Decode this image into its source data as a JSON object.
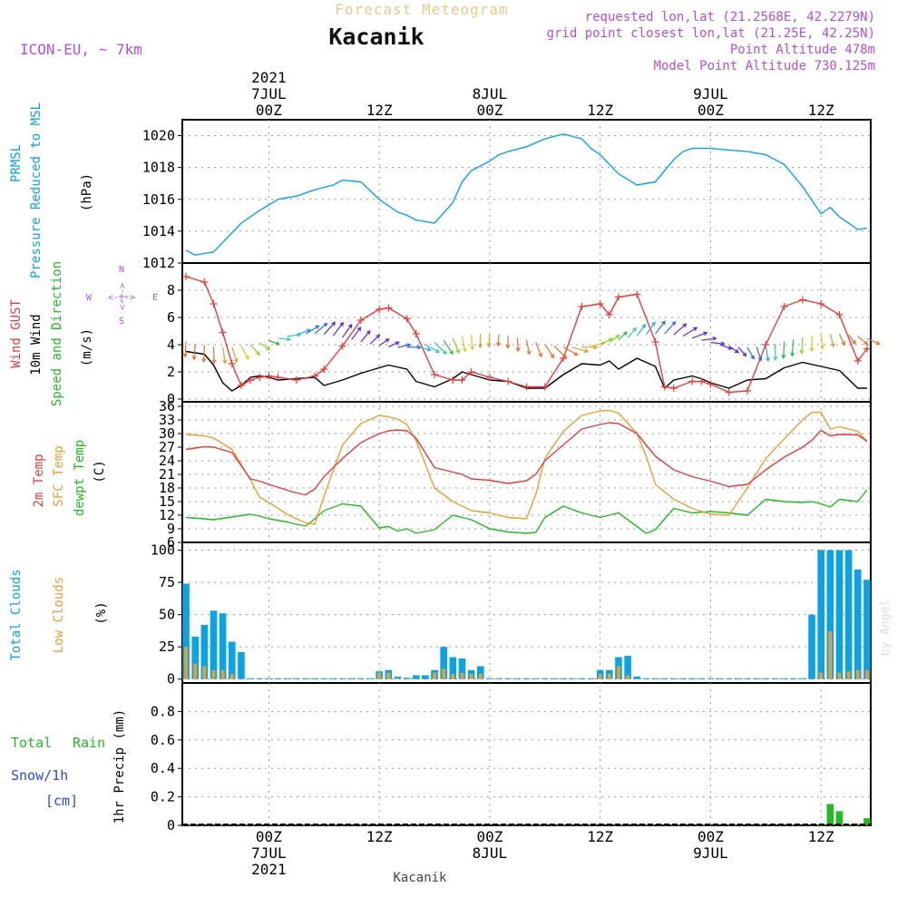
{
  "header": {
    "product": "Forecast Meteogram",
    "location": "Kacanik",
    "model": "ICON-EU, ~ 7km",
    "requested": "requested lon,lat (21.2568E, 42.2279N)",
    "gridpoint": "grid point closest lon,lat (21.25E, 42.25N)",
    "point_alt": "Point Altitude 478m",
    "model_alt": "Model Point Altitude 730.125m"
  },
  "footer": {
    "location": "Kacanik",
    "credit": "by Angel"
  },
  "time_axis": {
    "ticks": [
      {
        "hour": 0,
        "top": [
          "2021",
          "7JUL",
          "00Z"
        ],
        "bottom": [
          "00Z",
          "7JUL",
          "2021"
        ]
      },
      {
        "hour": 12,
        "top": [
          "12Z"
        ],
        "bottom": [
          "12Z"
        ]
      },
      {
        "hour": 24,
        "top": [
          "8JUL",
          "00Z"
        ],
        "bottom": [
          "00Z",
          "8JUL"
        ]
      },
      {
        "hour": 36,
        "top": [
          "12Z"
        ],
        "bottom": [
          "12Z"
        ]
      },
      {
        "hour": 48,
        "top": [
          "9JUL",
          "00Z"
        ],
        "bottom": [
          "00Z",
          "9JUL"
        ]
      },
      {
        "hour": 60,
        "top": [
          "12Z"
        ],
        "bottom": [
          "12Z"
        ]
      }
    ]
  },
  "panel_labels": {
    "pressure": [
      [
        "PRMSL",
        "#0aa4e6"
      ],
      [
        "Pressure Reduced to MSL",
        "#0aa4e6"
      ],
      [
        "(hPa)",
        "#000000"
      ]
    ],
    "wind": [
      [
        "Wind GUST",
        "#e83c3c"
      ],
      [
        "10m Wind",
        "#000000"
      ],
      [
        "Speed and Direction",
        "#22bb22"
      ],
      [
        "(m/s)",
        "#000000"
      ]
    ],
    "temp": [
      [
        "2m Temp",
        "#e83c3c"
      ],
      [
        "SFC Temp",
        "#e8a030"
      ],
      [
        "dewpt Temp",
        "#22bb22"
      ],
      [
        "(C)",
        "#000000"
      ]
    ],
    "clouds": [
      [
        "Total Clouds",
        "#0aa4e6"
      ],
      [
        "Low Clouds",
        "#e8a030"
      ],
      [
        "(%)",
        "#000000"
      ]
    ],
    "precip_side": [
      "Total",
      "Rain",
      "Snow/1h",
      "[cm]"
    ],
    "precip_axis": "1hr Precip (mm)",
    "compass": {
      "n": "N",
      "s": "S",
      "e": "E",
      "w": "W",
      "arrow_h": "<-|->",
      "arrow_v": "<-|->"
    }
  },
  "colors": {
    "pressure": "#0aa4e6",
    "gust": "#e83c3c",
    "wind": "#000000",
    "temp2m": "#e83c3c",
    "sfc": "#e8a030",
    "dewpt": "#22bb22",
    "total_clouds": "#0aa4e6",
    "low_clouds": "#e8a030",
    "rain": "#22bb22",
    "title_grey": "#e8c98a",
    "info_purple": "#b44fd8"
  },
  "chart_data": [
    {
      "type": "line",
      "name": "pressure",
      "x_hours_from_0Z_7JUL": [
        -9,
        -8,
        -6,
        -5,
        -3,
        -1,
        1,
        2,
        3,
        5,
        7,
        8,
        10,
        12,
        14,
        15,
        16,
        18,
        20,
        21,
        22,
        24,
        25,
        26,
        28,
        30,
        32,
        34,
        35,
        36,
        38,
        40,
        42,
        44,
        45,
        46,
        48,
        50,
        52,
        54,
        56,
        58,
        60,
        61,
        62,
        64,
        65
      ],
      "y": [
        1012.8,
        1012.5,
        1012.7,
        1013.3,
        1014.5,
        1015.3,
        1016.0,
        1016.1,
        1016.2,
        1016.6,
        1016.9,
        1017.2,
        1017.1,
        1016.0,
        1015.2,
        1015.0,
        1014.7,
        1014.5,
        1015.8,
        1017.1,
        1017.8,
        1018.4,
        1018.8,
        1019.0,
        1019.3,
        1019.8,
        1020.1,
        1019.8,
        1019.2,
        1018.8,
        1017.6,
        1016.9,
        1017.1,
        1018.5,
        1019.0,
        1019.2,
        1019.2,
        1019.1,
        1019.0,
        1018.8,
        1018.2,
        1016.8,
        1015.1,
        1015.5,
        1014.9,
        1014.1,
        1014.2
      ],
      "ylim": [
        1012,
        1021
      ],
      "yticks": [
        1012,
        1014,
        1016,
        1018,
        1020
      ]
    },
    {
      "type": "line",
      "name": "wind",
      "x_hours_from_0Z_7JUL": [
        -9,
        -7,
        -6,
        -5,
        -4,
        -3,
        -2,
        -1,
        0,
        1,
        3,
        5,
        6,
        8,
        10,
        12,
        13,
        15,
        16,
        18,
        20,
        21,
        22,
        24,
        26,
        28,
        30,
        32,
        34,
        36,
        37,
        38,
        40,
        42,
        43,
        44,
        46,
        47,
        48,
        50,
        52,
        54,
        56,
        58,
        60,
        62,
        64,
        65
      ],
      "gust": [
        9.0,
        8.6,
        7.0,
        4.9,
        2.6,
        1.0,
        1.4,
        1.6,
        1.7,
        1.6,
        1.4,
        1.7,
        2.2,
        3.9,
        5.8,
        6.6,
        6.7,
        5.9,
        4.8,
        1.8,
        1.4,
        1.4,
        2.0,
        1.6,
        1.3,
        0.9,
        0.9,
        3.0,
        6.8,
        7.0,
        6.2,
        7.5,
        7.7,
        4.2,
        0.9,
        0.8,
        1.3,
        1.3,
        1.1,
        0.5,
        0.6,
        4.0,
        6.8,
        7.3,
        7.0,
        6.2,
        2.8,
        3.7
      ],
      "wind10m": [
        3.5,
        3.3,
        2.5,
        1.2,
        0.6,
        1.0,
        1.6,
        1.7,
        1.6,
        1.4,
        1.5,
        1.6,
        1.0,
        1.4,
        1.9,
        2.3,
        2.5,
        2.2,
        1.3,
        0.9,
        1.5,
        2.0,
        1.8,
        1.4,
        1.3,
        0.8,
        0.8,
        1.8,
        2.6,
        2.5,
        2.8,
        2.2,
        3.0,
        2.4,
        0.8,
        1.4,
        1.7,
        1.5,
        1.2,
        0.8,
        1.4,
        1.5,
        2.3,
        2.7,
        2.4,
        2.1,
        0.8,
        0.8
      ],
      "ylim": [
        0,
        10
      ],
      "yticks": [
        0,
        2,
        4,
        6,
        8
      ]
    },
    {
      "type": "line",
      "name": "temperature",
      "x_hours_from_0Z_7JUL": [
        -9,
        -7,
        -6,
        -4,
        -2,
        -1,
        0,
        2,
        3,
        4,
        5,
        6,
        8,
        10,
        12,
        13,
        14,
        15,
        16,
        18,
        20,
        21,
        22,
        24,
        26,
        28,
        29,
        30,
        32,
        34,
        36,
        37,
        38,
        40,
        41,
        42,
        44,
        46,
        48,
        50,
        52,
        54,
        56,
        58,
        59,
        60,
        61,
        62,
        64,
        65
      ],
      "temp2m": [
        26.5,
        27.1,
        27.0,
        25.8,
        20.0,
        19.5,
        18.8,
        17.5,
        16.9,
        16.5,
        17.8,
        20.5,
        24.5,
        28.0,
        30.0,
        30.6,
        30.8,
        30.6,
        29.0,
        22.5,
        21.5,
        21.0,
        20.0,
        19.7,
        19.0,
        19.6,
        21.0,
        24.0,
        27.5,
        31.0,
        32.0,
        32.4,
        32.2,
        30.0,
        27.5,
        25.0,
        22.0,
        20.5,
        19.5,
        18.3,
        18.8,
        22.0,
        24.8,
        27.0,
        28.5,
        30.7,
        29.5,
        29.8,
        29.7,
        28.3
      ],
      "sfc": [
        29.8,
        29.5,
        29.0,
        26.5,
        19.8,
        16.0,
        14.8,
        12.2,
        11.2,
        10.3,
        10.0,
        16.2,
        27.5,
        32.2,
        34.0,
        33.7,
        33.2,
        32.0,
        28.5,
        18.0,
        15.0,
        14.0,
        13.0,
        12.5,
        11.5,
        11.2,
        16.5,
        24.5,
        30.5,
        34.0,
        35.0,
        35.1,
        34.5,
        30.0,
        25.0,
        18.8,
        15.5,
        13.5,
        12.2,
        12.0,
        18.0,
        24.5,
        28.8,
        33.0,
        34.7,
        34.7,
        31.0,
        31.5,
        30.5,
        28.2
      ],
      "dewpt": [
        11.5,
        11.2,
        11.0,
        11.6,
        12.2,
        11.8,
        11.2,
        10.5,
        10.0,
        9.6,
        11.2,
        13.0,
        14.5,
        14.0,
        9.2,
        9.5,
        8.5,
        9.0,
        8.0,
        8.8,
        12.0,
        11.5,
        11.0,
        9.0,
        8.3,
        8.0,
        8.2,
        11.5,
        14.0,
        12.5,
        11.5,
        12.0,
        12.5,
        9.5,
        8.0,
        8.8,
        13.5,
        12.5,
        12.8,
        12.5,
        12.0,
        15.5,
        15.0,
        14.8,
        15.0,
        14.5,
        13.8,
        15.5,
        15.0,
        17.6
      ],
      "ylim": [
        6,
        37
      ],
      "yticks": [
        6,
        9,
        12,
        15,
        18,
        21,
        24,
        27,
        30,
        33,
        36
      ]
    },
    {
      "type": "bar",
      "name": "clouds",
      "x_hours_from_0Z_7JUL": [
        -9,
        -8,
        -7,
        -6,
        -5,
        -4,
        -3,
        -2,
        -1,
        0,
        1,
        2,
        3,
        4,
        5,
        6,
        7,
        8,
        9,
        10,
        11,
        12,
        13,
        14,
        15,
        16,
        17,
        18,
        19,
        20,
        21,
        22,
        23,
        24,
        25,
        26,
        27,
        28,
        29,
        30,
        31,
        32,
        33,
        34,
        35,
        36,
        37,
        38,
        39,
        40,
        41,
        42,
        43,
        44,
        45,
        46,
        47,
        48,
        49,
        50,
        51,
        52,
        53,
        54,
        55,
        56,
        57,
        58,
        59,
        60,
        61,
        62,
        63,
        64,
        65
      ],
      "total": [
        74,
        33,
        42,
        53,
        51,
        29,
        21,
        0,
        0,
        0,
        0,
        0,
        0,
        0,
        0,
        0,
        0,
        0,
        0,
        0,
        0,
        6,
        7,
        2,
        1,
        3,
        3,
        7,
        25,
        17,
        16,
        7,
        10,
        0,
        0,
        0,
        0,
        0,
        0,
        0,
        0,
        0,
        0,
        0,
        0,
        7,
        7,
        17,
        18,
        2,
        0,
        0,
        0,
        0,
        0,
        0,
        0,
        0,
        0,
        0,
        0,
        0,
        0,
        0,
        0,
        0,
        0,
        0,
        50,
        100,
        100,
        100,
        100,
        85,
        77
      ],
      "low": [
        25,
        12,
        10,
        7,
        7,
        4,
        0,
        0,
        0,
        0,
        0,
        0,
        0,
        0,
        0,
        0,
        0,
        0,
        0,
        0,
        0,
        5,
        5,
        1,
        0,
        0,
        0,
        5,
        8,
        4,
        5,
        4,
        4,
        0,
        0,
        0,
        0,
        0,
        0,
        0,
        0,
        0,
        0,
        0,
        0,
        4,
        4,
        10,
        3,
        0,
        0,
        0,
        0,
        0,
        0,
        0,
        0,
        0,
        0,
        0,
        0,
        0,
        0,
        0,
        0,
        0,
        0,
        0,
        0,
        5,
        37,
        5,
        6,
        7,
        7
      ],
      "ylim": [
        -3,
        106
      ],
      "yticks": [
        0,
        25,
        50,
        75,
        100
      ]
    },
    {
      "type": "bar",
      "name": "precip",
      "x_hours_from_0Z_7JUL": [
        60,
        61,
        62,
        63,
        64,
        65
      ],
      "rain": [
        0.0,
        0.15,
        0.1,
        0.0,
        0.01,
        0.05
      ],
      "ylim": [
        0,
        1.0
      ],
      "yticks": [
        0,
        0.2,
        0.4,
        0.6,
        0.8
      ]
    }
  ]
}
